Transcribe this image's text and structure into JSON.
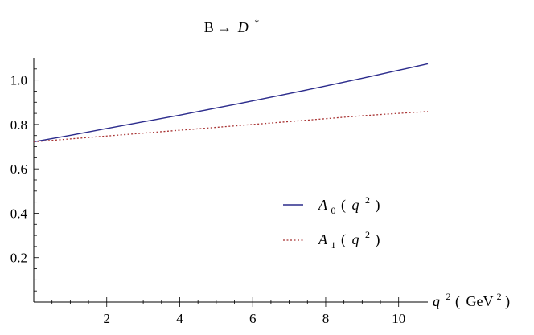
{
  "chart_data": {
    "type": "line",
    "title": "B → D *",
    "title_parts": {
      "prefix": "B →",
      "particle": "D",
      "superscript": "*"
    },
    "xlabel": "q 2 ( GeV2 )",
    "xlabel_parts": {
      "var": "q",
      "var_sup": "2",
      "open": "(",
      "unit": "GeV",
      "unit_sup": "2",
      "close": ")"
    },
    "ylabel": "",
    "xlim": [
      0,
      10.8
    ],
    "ylim": [
      0,
      1.1
    ],
    "x_ticks": [
      2,
      4,
      6,
      8,
      10
    ],
    "y_ticks": [
      0.2,
      0.4,
      0.6,
      0.8,
      1.0
    ],
    "x_tick_labels": [
      "2",
      "4",
      "6",
      "8",
      "10"
    ],
    "y_tick_labels": [
      "0.2",
      "0.4",
      "0.6",
      "0.8",
      "1.0"
    ],
    "grid": false,
    "legend_position": "center-right",
    "series": [
      {
        "name": "A 0 ( q 2 )",
        "label_parts": {
          "fn": "A",
          "sub": "0",
          "arg": "q",
          "arg_sup": "2"
        },
        "color": "#2b2b8c",
        "style": "solid",
        "x": [
          0,
          1,
          2,
          3,
          4,
          5,
          6,
          7,
          8,
          9,
          10,
          10.8
        ],
        "y": [
          0.722,
          0.751,
          0.782,
          0.812,
          0.842,
          0.874,
          0.906,
          0.939,
          0.973,
          1.008,
          1.044,
          1.073
        ]
      },
      {
        "name": "A 1 ( q 2 )",
        "label_parts": {
          "fn": "A",
          "sub": "1",
          "arg": "q",
          "arg_sup": "2"
        },
        "color": "#a83232",
        "style": "dotted",
        "x": [
          0,
          1,
          2,
          3,
          4,
          5,
          6,
          7,
          8,
          9,
          10,
          10.8
        ],
        "y": [
          0.722,
          0.735,
          0.748,
          0.761,
          0.774,
          0.787,
          0.8,
          0.813,
          0.826,
          0.839,
          0.85,
          0.858
        ]
      }
    ]
  }
}
